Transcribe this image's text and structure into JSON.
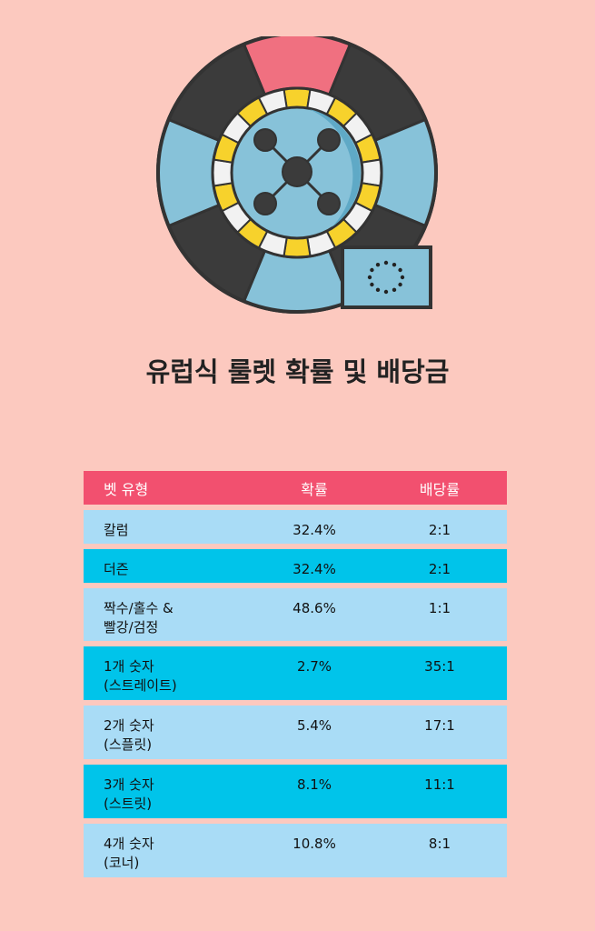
{
  "title": "유럽식 룰렛 확률 및 배당금",
  "colors": {
    "background": "#fcc9bf",
    "header": "#f2506f",
    "row_light": "#a9dcf6",
    "row_dark": "#00c4ea"
  },
  "illustration": {
    "icon": "roulette-wheel-icon",
    "flag_icon": "eu-flag-icon"
  },
  "table": {
    "headers": [
      "벳 유형",
      "확률",
      "배당률"
    ],
    "rows": [
      {
        "bet": [
          "칼럼"
        ],
        "probability": "32.4%",
        "payout": "2:1"
      },
      {
        "bet": [
          "더즌"
        ],
        "probability": "32.4%",
        "payout": "2:1"
      },
      {
        "bet": [
          "짝수/홀수 &",
          "빨강/검정"
        ],
        "probability": "48.6%",
        "payout": "1:1"
      },
      {
        "bet": [
          "1개 숫자",
          "(스트레이트)"
        ],
        "probability": "2.7%",
        "payout": "35:1"
      },
      {
        "bet": [
          "2개 숫자",
          "(스플릿)"
        ],
        "probability": "5.4%",
        "payout": "17:1"
      },
      {
        "bet": [
          "3개 숫자",
          "(스트릿)"
        ],
        "probability": "8.1%",
        "payout": "11:1"
      },
      {
        "bet": [
          "4개 숫자",
          "(코너)"
        ],
        "probability": "10.8%",
        "payout": "8:1"
      }
    ]
  }
}
